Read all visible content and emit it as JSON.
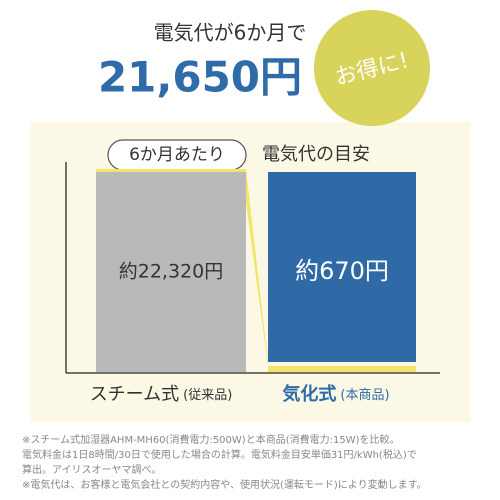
{
  "chart_data": {
    "type": "bar",
    "heading": "電気代が6か月で",
    "amount": "21,650円",
    "badge": "お得に!",
    "period": "6か月あたり",
    "title": "電気代の目安",
    "categories": [
      "スチーム式",
      "気化式"
    ],
    "category_notes": [
      "(従来品)",
      "(本商品)"
    ],
    "values": [
      22320,
      670
    ],
    "value_labels": [
      "約22,320円",
      "約670円"
    ],
    "colors": [
      "#b9b9b9",
      "#f3e56a"
    ],
    "label_box_color": "#2f6aa6",
    "ylim": [
      0,
      22320
    ],
    "footnotes": [
      "※スチーム式加湿器AHM-MH60(消費電力:500W)と本商品(消費電力:15W)を比較。",
      "電気料金は1日8時間/30日で使用した場合の計算。電気料金目安単価31円/kWh(税込)で",
      "算出。アイリスオーヤマ調べ。",
      "※電気代は、お客様と電気会社との契約内容や、使用状況(運転モード)により変動します。"
    ]
  }
}
